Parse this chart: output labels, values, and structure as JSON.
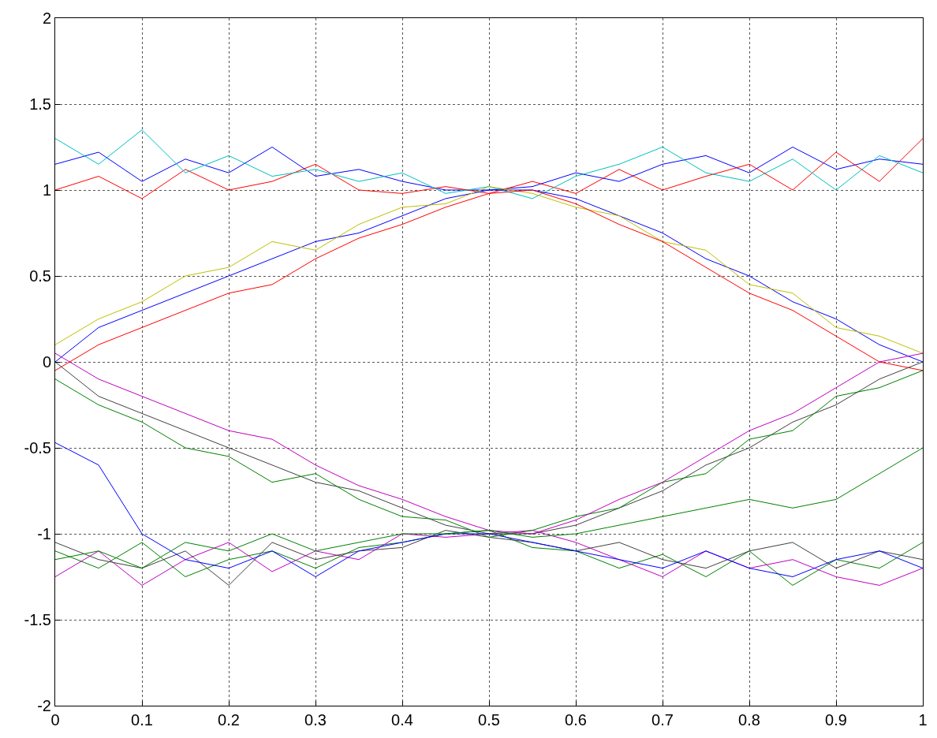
{
  "chart_data": {
    "type": "line",
    "x": [
      0,
      0.05,
      0.1,
      0.15,
      0.2,
      0.25,
      0.3,
      0.35,
      0.4,
      0.45,
      0.5,
      0.55,
      0.6,
      0.65,
      0.7,
      0.75,
      0.8,
      0.85,
      0.9,
      0.95,
      1
    ],
    "xlim": [
      0,
      1
    ],
    "xticks": [
      0,
      0.1,
      0.2,
      0.3,
      0.4,
      0.5,
      0.6,
      0.7,
      0.8,
      0.9,
      1
    ],
    "ylim": [
      -2,
      2
    ],
    "yticks": [
      -2,
      -1.5,
      -1,
      -0.5,
      0,
      0.5,
      1,
      1.5,
      2
    ],
    "grid": true,
    "marker": "none",
    "line_style": "solid",
    "series": [
      {
        "color": "#0000ff",
        "values": [
          1.15,
          1.22,
          1.05,
          1.18,
          1.1,
          1.25,
          1.08,
          1.12,
          1.05,
          1.0,
          1.0,
          1.02,
          1.1,
          1.05,
          1.15,
          1.2,
          1.1,
          1.25,
          1.12,
          1.18,
          1.15
        ]
      },
      {
        "color": "#ff0000",
        "values": [
          1.0,
          1.08,
          0.95,
          1.12,
          1.0,
          1.05,
          1.15,
          1.0,
          0.98,
          1.02,
          0.98,
          1.05,
          0.98,
          1.12,
          1.0,
          1.08,
          1.15,
          1.0,
          1.22,
          1.05,
          1.3
        ]
      },
      {
        "color": "#00bfbf",
        "values": [
          1.3,
          1.15,
          1.35,
          1.1,
          1.2,
          1.08,
          1.12,
          1.05,
          1.1,
          0.98,
          1.02,
          0.95,
          1.08,
          1.15,
          1.25,
          1.1,
          1.05,
          1.18,
          1.0,
          1.2,
          1.1
        ]
      },
      {
        "color": "#008000",
        "values": [
          -1.1,
          -1.2,
          -1.05,
          -1.25,
          -1.15,
          -1.1,
          -1.2,
          -1.08,
          -1.05,
          -1.0,
          -0.98,
          -1.08,
          -1.1,
          -1.2,
          -1.12,
          -1.25,
          -1.1,
          -1.3,
          -1.15,
          -1.2,
          -1.05
        ]
      },
      {
        "color": "#bf00bf",
        "values": [
          -1.25,
          -1.1,
          -1.3,
          -1.15,
          -1.05,
          -1.22,
          -1.1,
          -1.15,
          -1.0,
          -1.02,
          -1.0,
          -0.98,
          -1.05,
          -1.15,
          -1.25,
          -1.1,
          -1.2,
          -1.15,
          -1.25,
          -1.3,
          -1.2
        ]
      },
      {
        "color": "#404040",
        "values": [
          -1.05,
          -1.15,
          -1.2,
          -1.1,
          -1.3,
          -1.05,
          -1.15,
          -1.1,
          -1.08,
          -0.98,
          -1.02,
          -1.05,
          -1.1,
          -1.05,
          -1.15,
          -1.2,
          -1.1,
          -1.05,
          -1.2,
          -1.1,
          -1.15
        ]
      },
      {
        "color": "#0000ff",
        "values": [
          0.0,
          0.2,
          0.3,
          0.4,
          0.5,
          0.6,
          0.7,
          0.75,
          0.85,
          0.95,
          1.0,
          1.0,
          0.95,
          0.85,
          0.75,
          0.6,
          0.5,
          0.35,
          0.25,
          0.1,
          0.0
        ]
      },
      {
        "color": "#bfbf00",
        "values": [
          0.1,
          0.25,
          0.35,
          0.5,
          0.55,
          0.7,
          0.65,
          0.8,
          0.9,
          0.92,
          1.02,
          0.98,
          0.9,
          0.85,
          0.7,
          0.65,
          0.45,
          0.4,
          0.2,
          0.15,
          0.05
        ]
      },
      {
        "color": "#ff0000",
        "values": [
          -0.05,
          0.1,
          0.2,
          0.3,
          0.4,
          0.45,
          0.6,
          0.72,
          0.8,
          0.9,
          0.98,
          1.0,
          0.92,
          0.8,
          0.7,
          0.55,
          0.4,
          0.3,
          0.15,
          0.0,
          -0.05
        ]
      },
      {
        "color": "#404040",
        "values": [
          0.0,
          -0.2,
          -0.3,
          -0.4,
          -0.5,
          -0.6,
          -0.7,
          -0.75,
          -0.85,
          -0.95,
          -1.0,
          -1.0,
          -0.95,
          -0.85,
          -0.75,
          -0.6,
          -0.5,
          -0.35,
          -0.25,
          -0.1,
          0.0
        ]
      },
      {
        "color": "#008000",
        "values": [
          -0.1,
          -0.25,
          -0.35,
          -0.5,
          -0.55,
          -0.7,
          -0.65,
          -0.8,
          -0.9,
          -0.92,
          -1.02,
          -0.98,
          -0.9,
          -0.85,
          -0.7,
          -0.65,
          -0.45,
          -0.4,
          -0.2,
          -0.15,
          -0.05
        ]
      },
      {
        "color": "#bf00bf",
        "values": [
          0.05,
          -0.1,
          -0.2,
          -0.3,
          -0.4,
          -0.45,
          -0.6,
          -0.72,
          -0.8,
          -0.9,
          -0.98,
          -1.0,
          -0.92,
          -0.8,
          -0.7,
          -0.55,
          -0.4,
          -0.3,
          -0.15,
          0.0,
          0.05
        ]
      },
      {
        "color": "#0000ff",
        "values": [
          -0.47,
          -0.6,
          -1.0,
          -1.15,
          -1.2,
          -1.1,
          -1.25,
          -1.1,
          -1.05,
          -1.0,
          -1.0,
          -1.05,
          -1.1,
          -1.15,
          -1.2,
          -1.1,
          -1.2,
          -1.25,
          -1.15,
          -1.1,
          -1.2
        ]
      },
      {
        "color": "#008000",
        "values": [
          -1.15,
          -1.1,
          -1.2,
          -1.05,
          -1.1,
          -1.0,
          -1.1,
          -1.05,
          -1.0,
          -1.0,
          -0.98,
          -1.02,
          -1.0,
          -0.95,
          -0.9,
          -0.85,
          -0.8,
          -0.85,
          -0.8,
          -0.65,
          -0.5
        ]
      }
    ]
  }
}
